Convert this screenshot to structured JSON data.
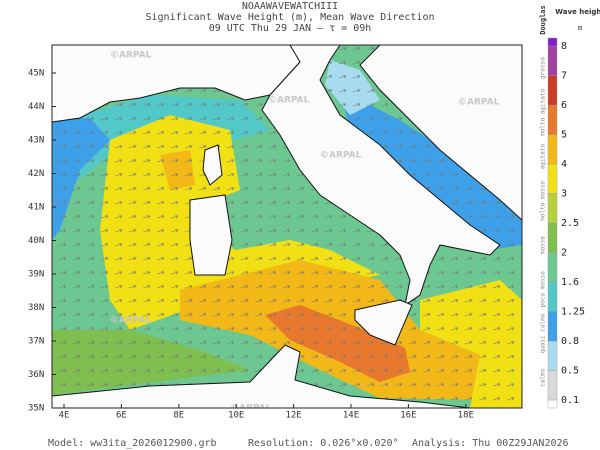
{
  "header": {
    "source": "NOAAWAVEWATCHIII",
    "title": "Significant Wave Height (m), Mean Wave Direction",
    "subtitle": "09 UTC Thu 29 JAN  —  τ = 09h"
  },
  "map": {
    "lat_labels": [
      "45N",
      "44N",
      "43N",
      "42N",
      "41N",
      "40N",
      "39N",
      "38N",
      "37N",
      "36N",
      "35N"
    ],
    "lon_labels": [
      "4E",
      "6E",
      "8E",
      "10E",
      "12E",
      "14E",
      "16E",
      "18E"
    ],
    "watermark": "©ARPAL"
  },
  "legend": {
    "title": "Wave height",
    "unit": "m",
    "scale_name": "Douglas",
    "levels": [
      0.1,
      0.5,
      0.8,
      1.25,
      1.6,
      2,
      2.5,
      3,
      4,
      5,
      6,
      7,
      8
    ],
    "colors": [
      "#ffffff",
      "#d9d9d9",
      "#a7dcf0",
      "#3da0e8",
      "#52c8c8",
      "#6cc890",
      "#7fbf50",
      "#b4d23c",
      "#f0e014",
      "#f2b818",
      "#e8782e",
      "#c83c28",
      "#a040a0",
      "#8020c0"
    ],
    "douglas": [
      "calmo",
      "quasi calmo",
      "poco mosso",
      "mosso",
      "molto mosso",
      "agitato",
      "molto agitato",
      "grosso"
    ]
  },
  "footer": {
    "model": "Model:  ww3ita_2026012900.grb",
    "resolution": "Resolution: 0.026°x0.020°",
    "analysis": "Analysis: Thu 00Z29JAN2026"
  }
}
